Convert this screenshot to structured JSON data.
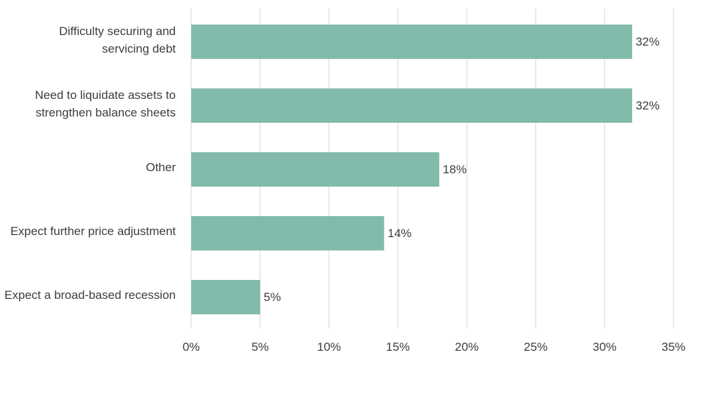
{
  "chart_data": {
    "type": "bar",
    "orientation": "horizontal",
    "title": "",
    "xlabel": "",
    "ylabel": "",
    "categories": [
      [
        "Difficulty securing and",
        "servicing debt"
      ],
      [
        "Need to liquidate assets to",
        "strengthen balance sheets"
      ],
      [
        "Other"
      ],
      [
        "Expect further price adjustment"
      ],
      [
        "Expect a broad-based recession"
      ]
    ],
    "values": [
      32,
      32,
      18,
      14,
      5
    ],
    "value_labels": [
      "32%",
      "32%",
      "18%",
      "14%",
      "5%"
    ],
    "xlim": [
      0,
      35
    ],
    "xticks": [
      0,
      5,
      10,
      15,
      20,
      25,
      30,
      35
    ],
    "xtick_labels": [
      "0%",
      "5%",
      "10%",
      "15%",
      "20%",
      "25%",
      "30%",
      "35%"
    ],
    "grid": "vertical",
    "legend": "none",
    "bar_color": "#82bbab",
    "grid_color": "#d4d4d4",
    "text_color": "#3d3d3d"
  }
}
